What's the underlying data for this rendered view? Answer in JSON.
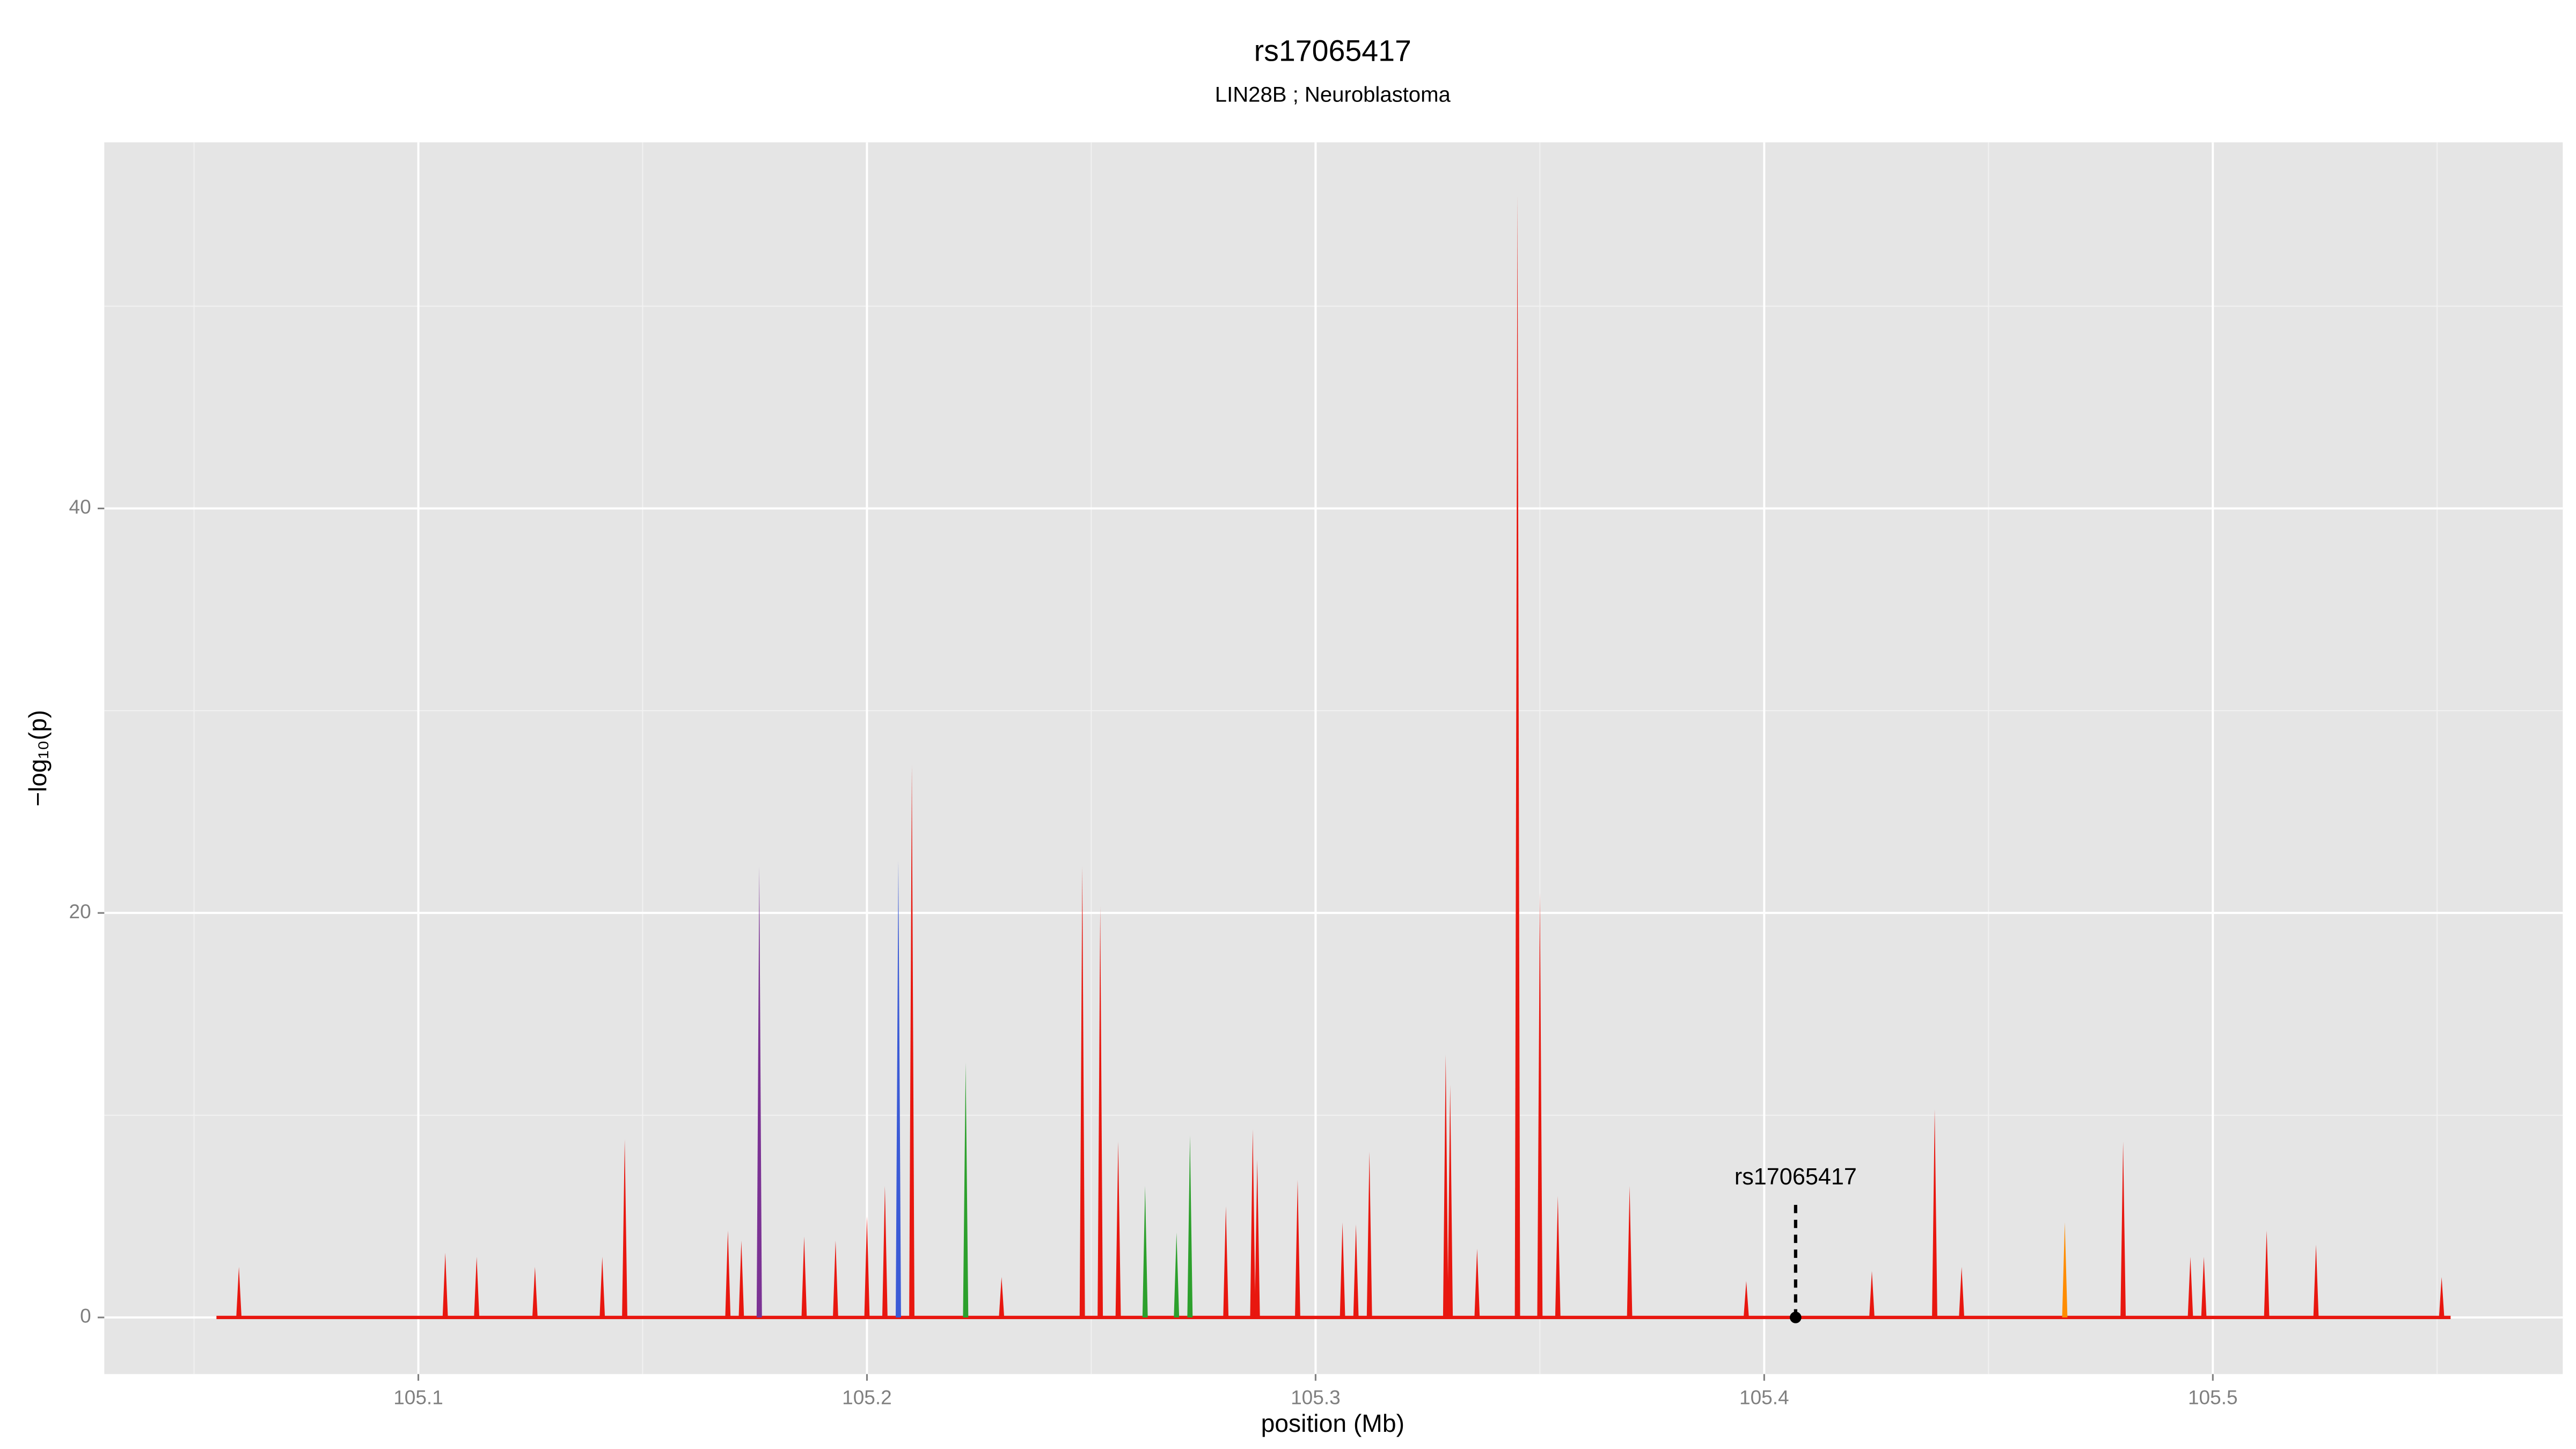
{
  "chart_data": {
    "type": "spike",
    "title": "rs17065417",
    "subtitle": "LIN28B ; Neuroblastoma",
    "x_label": "position (Mb)",
    "y_label": "−log₁₀(p)",
    "xlim": [
      105.03,
      105.578
    ],
    "ylim": [
      -2.8,
      58.1
    ],
    "xticks": [
      105.1,
      105.2,
      105.3,
      105.4,
      105.5
    ],
    "yticks": [
      0,
      20,
      40
    ],
    "minor_xticks": [
      105.05,
      105.15,
      105.25,
      105.35,
      105.45,
      105.55
    ],
    "minor_yticks": [
      10,
      30,
      50
    ],
    "grid": true,
    "series": [
      {
        "color": "#e8170f",
        "x": [
          105.055,
          105.06,
          105.106,
          105.113,
          105.126,
          105.141,
          105.146,
          105.169,
          105.172,
          105.186,
          105.193,
          105.2,
          105.204,
          105.21,
          105.23,
          105.248,
          105.252,
          105.256,
          105.28,
          105.286,
          105.287,
          105.296,
          105.306,
          105.309,
          105.312,
          105.329,
          105.33,
          105.336,
          105.345,
          105.35,
          105.354,
          105.37,
          105.396,
          105.424,
          105.438,
          105.444,
          105.48,
          105.495,
          105.498,
          105.512,
          105.523,
          105.551,
          105.553
        ],
        "values": [
          0,
          2.5,
          3.2,
          3,
          2.5,
          3,
          8.8,
          4.3,
          3.8,
          4,
          3.8,
          5,
          6.5,
          27.3,
          2,
          22.3,
          20.3,
          8.7,
          5.5,
          9.3,
          7.8,
          6.8,
          4.7,
          4.6,
          8.2,
          13,
          11.5,
          3.4,
          55.5,
          21,
          6,
          6.5,
          1.8,
          2.3,
          10.3,
          2.5,
          8.7,
          3,
          3,
          4.3,
          3.6,
          2,
          0
        ]
      },
      {
        "color": "#7b3294",
        "x": [
          105.176
        ],
        "values": [
          22.3
        ]
      },
      {
        "color": "#3b5bd6",
        "x": [
          105.207
        ],
        "values": [
          22.6
        ]
      },
      {
        "color": "#2ca02c",
        "x": [
          105.222,
          105.262,
          105.269,
          105.272
        ],
        "values": [
          12.6,
          6.5,
          4.2,
          9
        ]
      },
      {
        "color": "#ff8c00",
        "x": [
          105.467
        ],
        "values": [
          4.7
        ]
      }
    ],
    "annotation": {
      "text": "rs17065417",
      "x": 105.407,
      "y": 0
    }
  }
}
